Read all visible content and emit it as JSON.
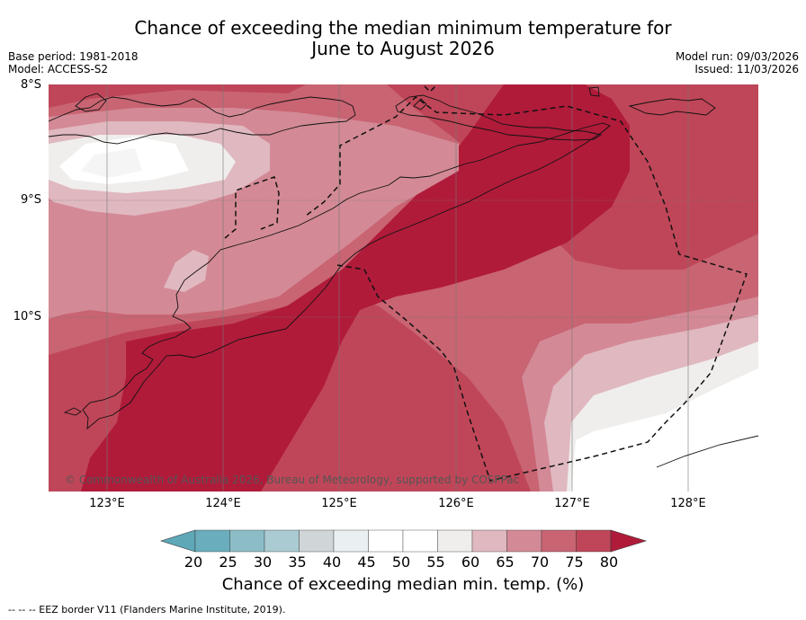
{
  "title": {
    "line1": "Chance of exceeding the median minimum temperature for",
    "line2": "June to August 2026"
  },
  "meta": {
    "base_period": "Base period: 1981-2018",
    "model": "Model: ACCESS-S2",
    "model_run": "Model run: 09/03/2026",
    "issued": "Issued: 11/03/2026"
  },
  "axes": {
    "lat_labels": [
      "8°S",
      "9°S",
      "10°S"
    ],
    "lon_labels": [
      "123°E",
      "124°E",
      "125°E",
      "126°E",
      "127°E",
      "128°E"
    ]
  },
  "copyright": "© Commonwealth of Australia 2026, Bureau of Meteorology, supported by COSPPac",
  "colorbar": {
    "ticks": [
      "20",
      "25",
      "30",
      "35",
      "40",
      "45",
      "50",
      "55",
      "60",
      "65",
      "70",
      "75",
      "80"
    ],
    "label": "Chance of exceeding median min. temp. (%)",
    "colors": [
      "#5ea8b8",
      "#6aaebd",
      "#8cbdc7",
      "#a9cbd1",
      "#d0d6d8",
      "#eaf0f2",
      "#ffffff",
      "#ffffff",
      "#efeeec",
      "#e0b8c0",
      "#d38a96",
      "#c96472",
      "#bf4658",
      "#b01b3a"
    ]
  },
  "legend_footer": "--  --  -- EEZ border V11 (Flanders Marine Institute, 2019).",
  "map": {
    "region": "Timor",
    "lat_range": [
      -11.5,
      -8.0
    ],
    "lon_range": [
      122.5,
      128.6
    ]
  }
}
